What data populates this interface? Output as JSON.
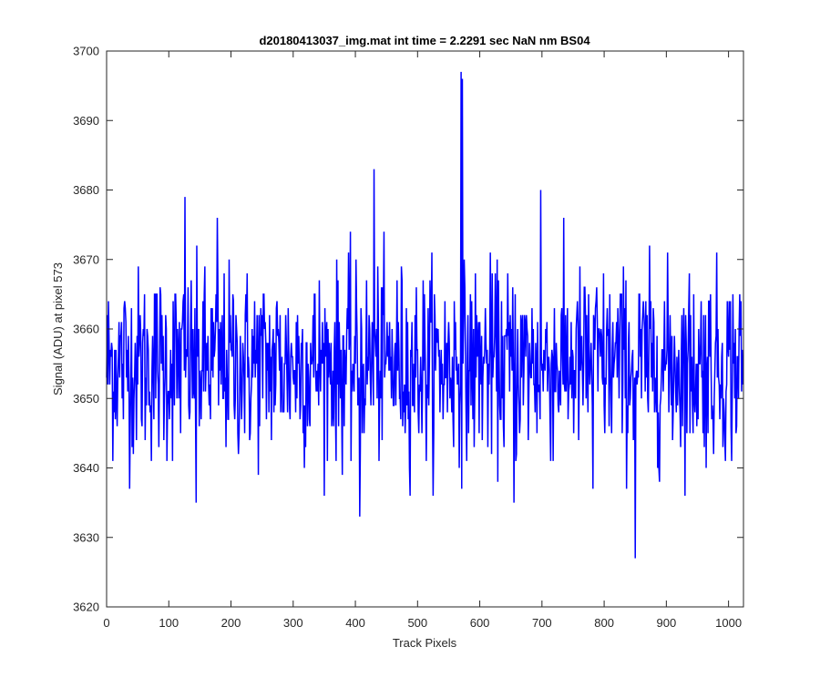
{
  "chart_data": {
    "type": "line",
    "title": "d20180413037_img.mat int time = 2.2291 sec  NaN nm BS04",
    "xlabel": "Track Pixels",
    "ylabel": "Signal (ADU) at pixel 573",
    "xlim": [
      0,
      1024
    ],
    "ylim": [
      3620,
      3700
    ],
    "xticks": [
      "0",
      "100",
      "200",
      "300",
      "400",
      "500",
      "600",
      "700",
      "800",
      "900",
      "1000"
    ],
    "yticks": [
      "3620",
      "3630",
      "3640",
      "3650",
      "3660",
      "3670",
      "3680",
      "3690",
      "3700"
    ],
    "grid": false,
    "legend": "none",
    "series": [
      {
        "color": "#0000ff",
        "n_points": 1024,
        "mean": 3655,
        "range": [
          3627,
          3697
        ],
        "notable_points": [
          {
            "x": 126,
            "y": 3679
          },
          {
            "x": 144,
            "y": 3635
          },
          {
            "x": 178,
            "y": 3676
          },
          {
            "x": 407,
            "y": 3633
          },
          {
            "x": 430,
            "y": 3683
          },
          {
            "x": 570,
            "y": 3697
          },
          {
            "x": 572,
            "y": 3696
          },
          {
            "x": 655,
            "y": 3635
          },
          {
            "x": 698,
            "y": 3680
          },
          {
            "x": 782,
            "y": 3637
          },
          {
            "x": 850,
            "y": 3627
          }
        ]
      }
    ]
  }
}
